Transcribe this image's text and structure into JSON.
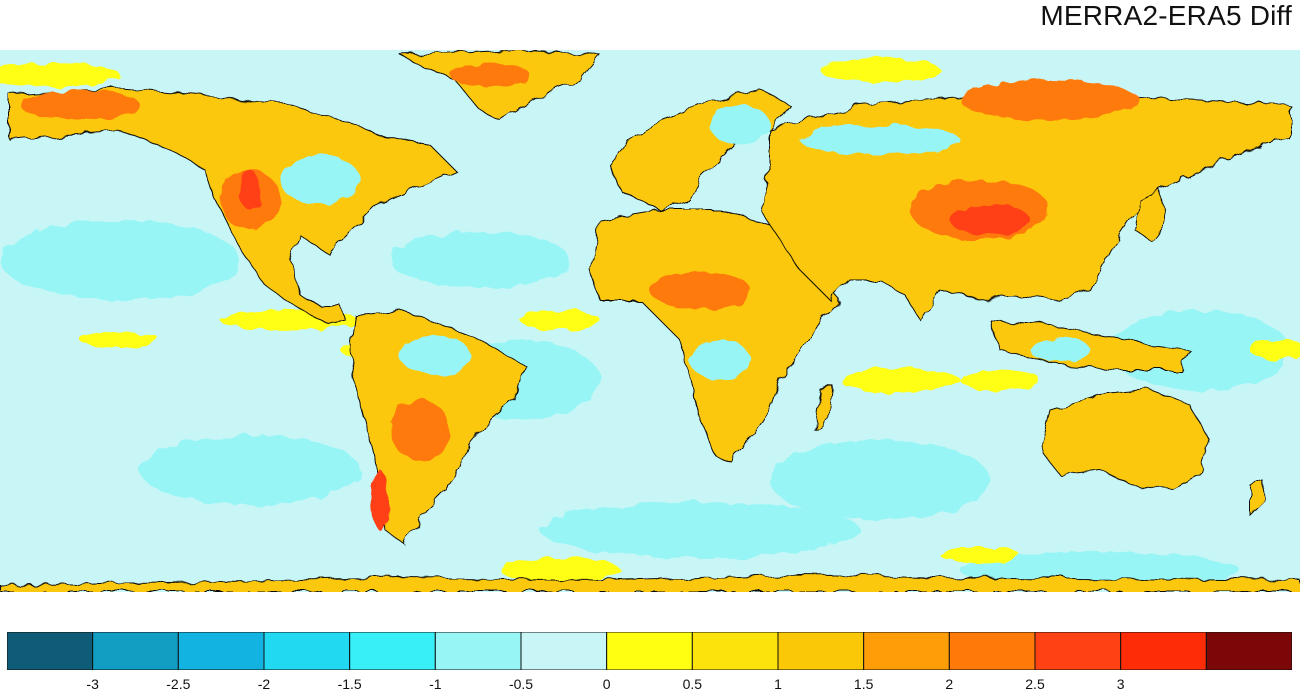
{
  "title": "MERRA2-ERA5 Diff",
  "colorbar": {
    "colors": [
      "#0f5c78",
      "#119ec2",
      "#12b3e0",
      "#22d9f2",
      "#38eef7",
      "#98f5f5",
      "#c8f6f6",
      "#ffff12",
      "#fbe30b",
      "#fbc807",
      "#ff9d08",
      "#ff7a08",
      "#ff4113",
      "#ff2d07",
      "#7b0708"
    ],
    "labels": [
      "-3",
      "-2.5",
      "-2",
      "-1.5",
      "-1",
      "-0.5",
      "0",
      "0.5",
      "1",
      "1.5",
      "2",
      "2.5",
      "3"
    ]
  },
  "map": {
    "projection": "equirectangular",
    "ocean_color": "#c8f6f6",
    "land_color": "#fbc807",
    "field_colors": {
      "slightly_negative": "#98f5f5",
      "warm_moderate": "#ff9d08",
      "warm_strong": "#ff7a08",
      "hot": "#ff4113",
      "cool_strong": "#38eef7"
    }
  }
}
